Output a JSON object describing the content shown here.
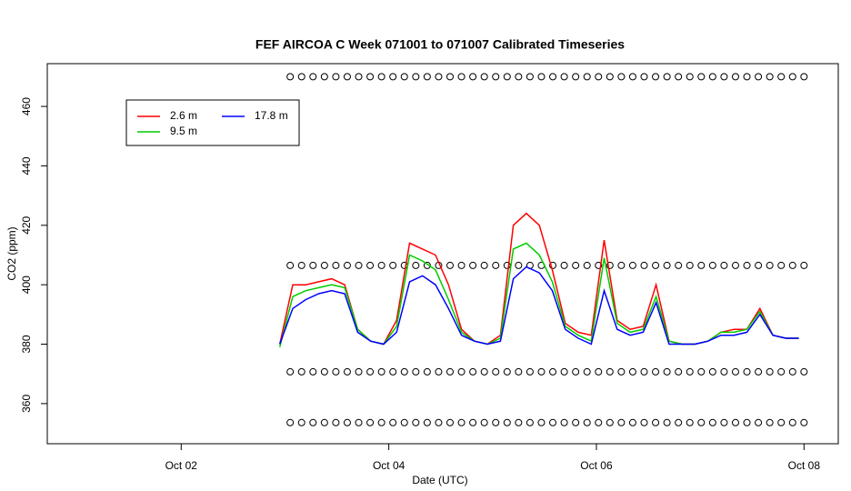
{
  "chart_data": {
    "type": "line",
    "title": "FEF AIRCOA C  Week 071001 to 071007  Calibrated Timeseries",
    "x_label": "Date (UTC)",
    "y_label": "CO2 (ppm)",
    "x": [
      2.95,
      3.075,
      3.2,
      3.325,
      3.45,
      3.575,
      3.7,
      3.825,
      3.95,
      4.075,
      4.2,
      4.325,
      4.45,
      4.575,
      4.7,
      4.825,
      4.95,
      5.075,
      5.2,
      5.325,
      5.45,
      5.575,
      5.7,
      5.825,
      5.95,
      6.075,
      6.2,
      6.325,
      6.45,
      6.575,
      6.7,
      6.825,
      6.95,
      7.075,
      7.2,
      7.325,
      7.45,
      7.575,
      7.7,
      7.825,
      7.95
    ],
    "series": [
      {
        "name": "2.6 m",
        "color": "#ff0000",
        "values": [
          380,
          400,
          400,
          401,
          402,
          400,
          385,
          381,
          380,
          388,
          414,
          412,
          410,
          400,
          385,
          381,
          380,
          383,
          420,
          424,
          420,
          405,
          387,
          384,
          383,
          415,
          388,
          385,
          386,
          400,
          381,
          380,
          380,
          381,
          384,
          385,
          385,
          392,
          383,
          382,
          382
        ]
      },
      {
        "name": "9.5 m",
        "color": "#00cc00",
        "values": [
          379,
          396,
          398,
          399,
          400,
          399,
          385,
          381,
          380,
          386,
          410,
          408,
          405,
          395,
          384,
          381,
          380,
          382,
          412,
          414,
          410,
          401,
          386,
          383,
          381,
          409,
          387,
          384,
          385,
          396,
          381,
          380,
          380,
          381,
          384,
          384,
          385,
          391,
          383,
          382,
          382
        ]
      },
      {
        "name": "17.8 m",
        "color": "#0000ff",
        "values": [
          380,
          392,
          395,
          397,
          398,
          397,
          384,
          381,
          380,
          384,
          401,
          403,
          400,
          392,
          383,
          381,
          380,
          381,
          402,
          406,
          404,
          398,
          385,
          382,
          380,
          398,
          385,
          383,
          384,
          394,
          380,
          380,
          380,
          381,
          383,
          383,
          384,
          390,
          383,
          382,
          382
        ]
      }
    ],
    "marker_levels": [
      470,
      406.5,
      370.7,
      353.6
    ],
    "marker_x": [
      3.05,
      3.16,
      3.27,
      3.38,
      3.49,
      3.6,
      3.71,
      3.82,
      3.93,
      4.04,
      4.15,
      4.26,
      4.37,
      4.48,
      4.59,
      4.7,
      4.81,
      4.92,
      5.03,
      5.14,
      5.25,
      5.36,
      5.47,
      5.58,
      5.69,
      5.8,
      5.91,
      6.02,
      6.13,
      6.24,
      6.35,
      6.46,
      6.57,
      6.68,
      6.79,
      6.9,
      7.01,
      7.12,
      7.23,
      7.34,
      7.45,
      7.56,
      7.67,
      7.78,
      7.89,
      8.0
    ],
    "xlim": [
      0.71,
      8.33
    ],
    "xticks": [
      {
        "value": 2,
        "label": "Oct 02"
      },
      {
        "value": 4,
        "label": "Oct 04"
      },
      {
        "value": 6,
        "label": "Oct 06"
      },
      {
        "value": 8,
        "label": "Oct 08"
      }
    ],
    "ylim": [
      346.5,
      474.4
    ],
    "yticks": [
      360,
      380,
      400,
      420,
      440,
      460
    ],
    "legend": "top-left"
  }
}
